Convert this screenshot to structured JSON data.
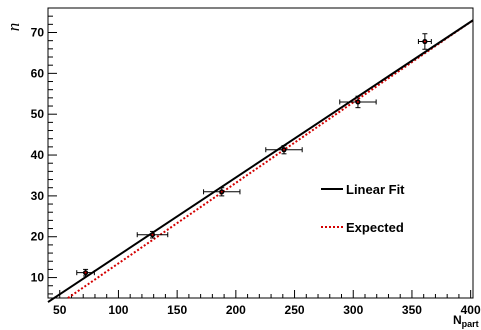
{
  "chart_data": {
    "type": "scatter",
    "xlabel": "N",
    "xlabel_sub": "part",
    "ylabel": "n",
    "xlim": [
      40,
      402
    ],
    "ylim": [
      5,
      76
    ],
    "xticks": [
      50,
      100,
      150,
      200,
      250,
      300,
      350,
      400
    ],
    "yticks": [
      10,
      20,
      30,
      40,
      50,
      60,
      70
    ],
    "grid": false,
    "legend_position": "right",
    "colors": {
      "fit": "#000000",
      "expected": "#d40000",
      "points": "#000000",
      "points_dot": "#cc0000"
    },
    "series": [
      {
        "kind": "points",
        "x": [
          72,
          129,
          188,
          241,
          304,
          361
        ],
        "y": [
          11.2,
          20.5,
          31.0,
          41.3,
          53.0,
          67.8
        ],
        "x_err": [
          7.5,
          13,
          15.5,
          15.5,
          15.5,
          5.5
        ],
        "y_err": [
          0.8,
          0.8,
          1.0,
          1.0,
          1.4,
          1.9
        ]
      },
      {
        "name": "Linear Fit",
        "kind": "line",
        "style": "solid",
        "x": [
          40,
          402
        ],
        "y": [
          4.0,
          73.0
        ]
      },
      {
        "name": "Expected",
        "kind": "line",
        "style": "dotted",
        "x": [
          57,
          402
        ],
        "y": [
          5.0,
          73.0
        ]
      }
    ],
    "legend": [
      {
        "label": "Linear Fit",
        "style": "solid",
        "color": "#000000"
      },
      {
        "label": "Expected",
        "style": "dotted",
        "color": "#d40000"
      }
    ]
  }
}
